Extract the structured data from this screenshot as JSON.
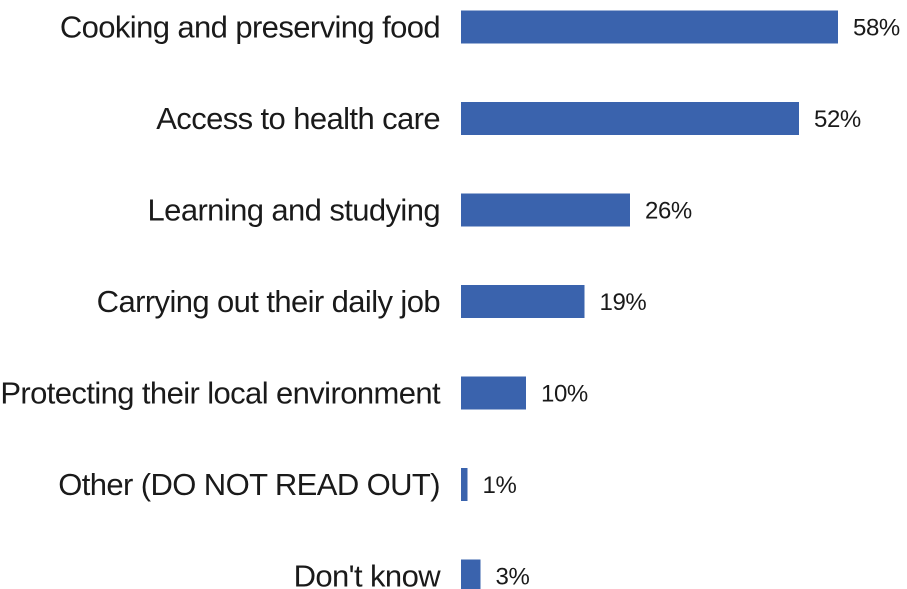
{
  "chart_data": {
    "type": "bar",
    "orientation": "horizontal",
    "categories": [
      "Cooking and preserving food",
      "Access to health care",
      "Learning and studying",
      "Carrying out their daily job",
      "Protecting their local environment",
      "Other (DO NOT READ OUT)",
      "Don't know"
    ],
    "values": [
      58,
      52,
      26,
      19,
      10,
      1,
      3
    ],
    "value_labels": [
      "58%",
      "52%",
      "26%",
      "19%",
      "10%",
      "1%",
      "3%"
    ],
    "value_unit": "%",
    "bar_color": "#3a63ad",
    "grid": false,
    "legend": "none"
  }
}
